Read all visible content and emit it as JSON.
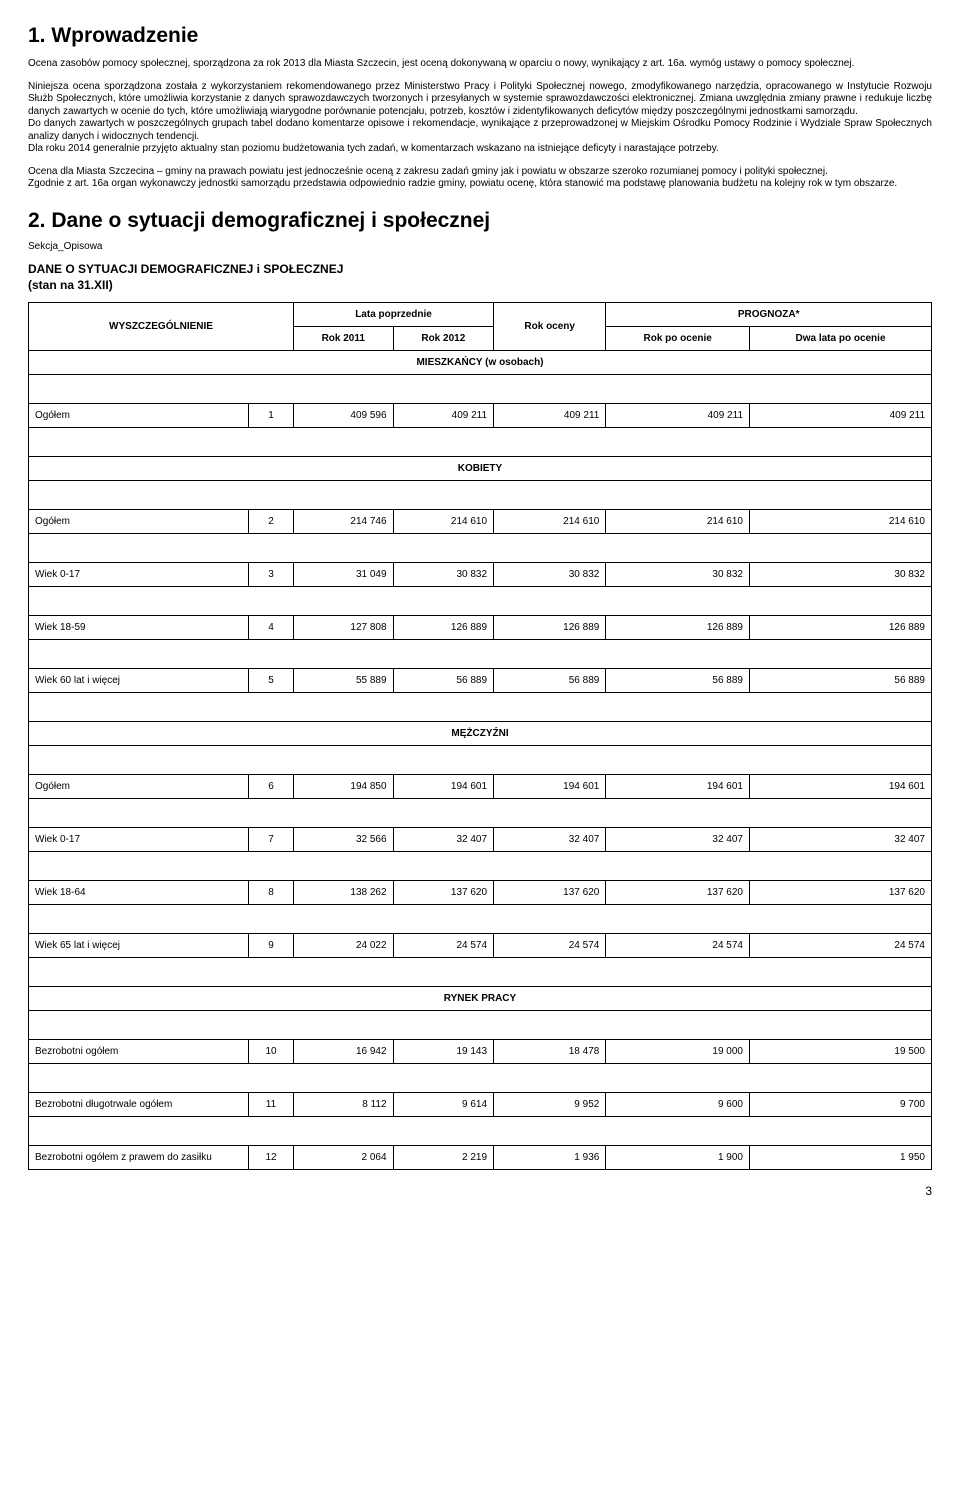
{
  "section1": {
    "heading": "1. Wprowadzenie",
    "p1": "Ocena zasobów pomocy społecznej, sporządzona za rok 2013 dla Miasta Szczecin, jest oceną dokonywaną w oparciu o nowy, wynikający z art. 16a. wymóg ustawy o pomocy społecznej.",
    "p2": "Niniejsza ocena sporządzona została z wykorzystaniem rekomendowanego przez Ministerstwo Pracy i Polityki Społecznej nowego, zmodyfikowanego narzędzia, opracowanego w Instytucie Rozwoju Służb Społecznych, które umożliwia korzystanie z danych sprawozdawczych tworzonych i przesyłanych w systemie sprawozdawczości elektronicznej.",
    "p3": "Zmiana uwzględnia zmiany prawne i redukuje liczbę danych zawartych w ocenie do tych, które umożliwiają wiarygodne porównanie potencjału, potrzeb, kosztów i zidentyfikowanych deficytów między poszczególnymi jednostkami samorządu.",
    "p4": "Do danych zawartych w poszczególnych grupach tabel dodano komentarze opisowe i rekomendacje, wynikające z przeprowadzonej w Miejskim Ośrodku Pomocy Rodzinie i Wydziale Spraw Społecznych analizy danych i widocznych tendencji.",
    "p5": "Dla roku 2014 generalnie przyjęto aktualny stan poziomu budżetowania tych zadań, w komentarzach wskazano na istniejące deficyty i narastające potrzeby.",
    "p6": "Ocena dla Miasta Szczecina – gminy na prawach powiatu jest jednocześnie oceną z zakresu zadań gminy jak i powiatu w obszarze szeroko rozumianej pomocy i polityki społecznej.",
    "p7": "Zgodnie z art. 16a organ wykonawczy jednostki samorządu przedstawia odpowiednio radzie gminy, powiatu ocenę, która stanowić ma podstawę planowania budżetu na kolejny rok w tym obszarze."
  },
  "section2": {
    "heading": "2. Dane o sytuacji demograficznej i społecznej",
    "sekcja": "Sekcja_Opisowa",
    "table_title": "DANE O SYTUACJI DEMOGRAFICZNEJ i SPOŁECZNEJ",
    "table_sub": "(stan na 31.XII)"
  },
  "table": {
    "headers": {
      "wysz": "WYSZCZEGÓLNIENIE",
      "lata_poprz": "Lata poprzednie",
      "rok_oceny": "Rok oceny",
      "prognoza": "PROGNOZA*",
      "rok2011": "Rok 2011",
      "rok2012": "Rok 2012",
      "rok_po": "Rok po ocenie",
      "dwa_lata": "Dwa lata po ocenie"
    },
    "sections": {
      "mieszkancy": "MIESZKAŃCY (w osobach)",
      "kobiety": "KOBIETY",
      "mezczyzni": "MĘŻCZYŹNI",
      "rynek": "RYNEK PRACY"
    },
    "rows": [
      {
        "label": "Ogółem",
        "idx": "1",
        "v": [
          "409 596",
          "409 211",
          "409 211",
          "409 211",
          "409 211"
        ]
      },
      {
        "label": "Ogółem",
        "idx": "2",
        "v": [
          "214 746",
          "214 610",
          "214 610",
          "214 610",
          "214 610"
        ]
      },
      {
        "label": "Wiek 0-17",
        "idx": "3",
        "v": [
          "31 049",
          "30 832",
          "30 832",
          "30 832",
          "30 832"
        ]
      },
      {
        "label": "Wiek 18-59",
        "idx": "4",
        "v": [
          "127 808",
          "126 889",
          "126 889",
          "126 889",
          "126 889"
        ]
      },
      {
        "label": "Wiek 60 lat i więcej",
        "idx": "5",
        "v": [
          "55 889",
          "56 889",
          "56 889",
          "56 889",
          "56 889"
        ]
      },
      {
        "label": "Ogółem",
        "idx": "6",
        "v": [
          "194 850",
          "194 601",
          "194 601",
          "194 601",
          "194 601"
        ]
      },
      {
        "label": "Wiek 0-17",
        "idx": "7",
        "v": [
          "32 566",
          "32 407",
          "32 407",
          "32 407",
          "32 407"
        ]
      },
      {
        "label": "Wiek 18-64",
        "idx": "8",
        "v": [
          "138 262",
          "137 620",
          "137 620",
          "137 620",
          "137 620"
        ]
      },
      {
        "label": "Wiek 65 lat i więcej",
        "idx": "9",
        "v": [
          "24 022",
          "24 574",
          "24 574",
          "24 574",
          "24 574"
        ]
      },
      {
        "label": "Bezrobotni ogółem",
        "idx": "10",
        "v": [
          "16 942",
          "19 143",
          "18 478",
          "19 000",
          "19 500"
        ]
      },
      {
        "label": "Bezrobotni długotrwale ogółem",
        "idx": "11",
        "v": [
          "8 112",
          "9 614",
          "9 952",
          "9 600",
          "9 700"
        ]
      },
      {
        "label": "Bezrobotni ogółem z prawem do zasiłku",
        "idx": "12",
        "v": [
          "2 064",
          "2 219",
          "1 936",
          "1 900",
          "1 950"
        ]
      }
    ]
  },
  "page_number": "3"
}
